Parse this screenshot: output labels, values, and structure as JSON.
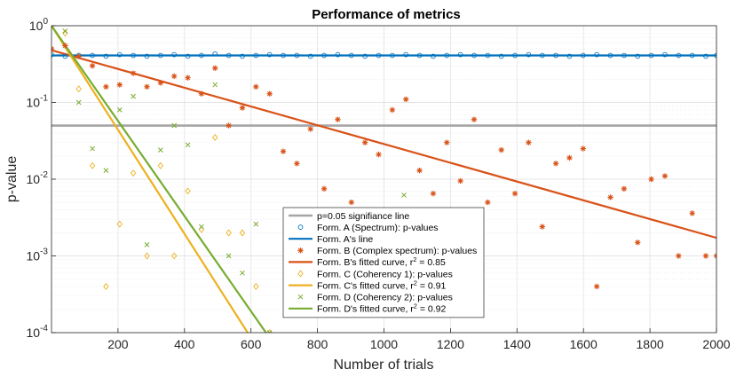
{
  "chart_data": {
    "type": "scatter",
    "title": "Performance of metrics",
    "xlabel": "Number of trials",
    "ylabel": "p-value",
    "xlim": [
      0,
      2000
    ],
    "ylim": [
      0.0001,
      1
    ],
    "yscale": "log",
    "grid": true,
    "legend_position": "bottom-center",
    "xticks": [
      200,
      400,
      600,
      800,
      1000,
      1200,
      1400,
      1600,
      1800,
      2000
    ],
    "xtick_labels": [
      "200",
      "400",
      "600",
      "800",
      "1000",
      "1200",
      "1400",
      "1600",
      "1800",
      "2000"
    ],
    "yticks": [
      1,
      0.1,
      0.01,
      0.001,
      0.0001
    ],
    "ytick_labels": [
      {
        "base": "10",
        "exp": "0"
      },
      {
        "base": "10",
        "exp": "-1"
      },
      {
        "base": "10",
        "exp": "-2"
      },
      {
        "base": "10",
        "exp": "-3"
      },
      {
        "base": "10",
        "exp": "-4"
      }
    ],
    "series": [
      {
        "name": "p=0.05 signifiance line",
        "legend_label": "p=0.05 signifiance line",
        "kind": "line",
        "color": "#a6a6a6",
        "x": [
          0,
          2000
        ],
        "y": [
          0.05,
          0.05
        ]
      },
      {
        "name": "Form. A (Spectrum): p-values",
        "legend_label": "Form. A (Spectrum): p-values",
        "kind": "marker",
        "marker": "circle",
        "color": "#0072bd",
        "x": [
          0,
          41,
          82,
          123,
          164,
          205,
          246,
          287,
          328,
          369,
          410,
          451,
          492,
          533,
          574,
          615,
          656,
          697,
          738,
          779,
          820,
          861,
          902,
          943,
          984,
          1025,
          1066,
          1107,
          1148,
          1189,
          1230,
          1271,
          1312,
          1353,
          1394,
          1435,
          1476,
          1517,
          1558,
          1599,
          1640,
          1681,
          1722,
          1763,
          1804,
          1845,
          1886,
          1927,
          1968,
          2000
        ],
        "y": [
          0.42,
          0.4,
          0.41,
          0.41,
          0.4,
          0.42,
          0.41,
          0.4,
          0.41,
          0.42,
          0.4,
          0.41,
          0.43,
          0.41,
          0.4,
          0.41,
          0.42,
          0.41,
          0.41,
          0.4,
          0.41,
          0.42,
          0.41,
          0.4,
          0.41,
          0.41,
          0.42,
          0.41,
          0.4,
          0.41,
          0.42,
          0.41,
          0.41,
          0.4,
          0.41,
          0.42,
          0.41,
          0.41,
          0.4,
          0.41,
          0.42,
          0.41,
          0.41,
          0.4,
          0.41,
          0.42,
          0.41,
          0.41,
          0.4,
          0.41
        ]
      },
      {
        "name": "Form. A's line",
        "legend_label": "Form. A's line",
        "kind": "line",
        "color": "#0072bd",
        "x": [
          0,
          2000
        ],
        "y": [
          0.41,
          0.41
        ]
      },
      {
        "name": "Form. B (Complex spectrum): p-values",
        "legend_label": "Form. B (Complex spectrum): p-values",
        "kind": "marker",
        "marker": "star",
        "color": "#d95319",
        "x": [
          0,
          41,
          82,
          123,
          164,
          205,
          246,
          287,
          328,
          369,
          410,
          451,
          492,
          533,
          574,
          615,
          656,
          697,
          738,
          779,
          820,
          861,
          902,
          943,
          984,
          1025,
          1066,
          1107,
          1148,
          1189,
          1230,
          1271,
          1312,
          1353,
          1394,
          1435,
          1476,
          1517,
          1558,
          1599,
          1640,
          1681,
          1722,
          1763,
          1804,
          1845,
          1886,
          1927,
          1968,
          2000
        ],
        "y": [
          0.5,
          0.55,
          0.4,
          0.3,
          0.16,
          0.17,
          0.24,
          0.16,
          0.18,
          0.22,
          0.21,
          0.13,
          0.28,
          0.05,
          0.085,
          0.16,
          0.13,
          0.023,
          0.016,
          0.045,
          0.0075,
          0.06,
          0.005,
          0.03,
          0.021,
          0.08,
          0.11,
          0.013,
          0.0065,
          0.03,
          0.0095,
          0.06,
          0.005,
          0.024,
          0.0065,
          0.03,
          0.0024,
          0.016,
          0.019,
          0.025,
          0.0004,
          0.0058,
          0.0075,
          0.0015,
          0.01,
          0.011,
          0.001,
          0.0036,
          0.001,
          0.001
        ]
      },
      {
        "name": "Form. B's fitted curve",
        "legend_label": "Form. B's fitted curve, r",
        "legend_sup": "2",
        "legend_suffix": " = 0.85",
        "kind": "line",
        "color": "#d95319",
        "x": [
          0,
          2000
        ],
        "y": [
          0.48,
          0.00172
        ]
      },
      {
        "name": "Form. C (Coherency 1): p-values",
        "legend_label": "Form. C (Coherency 1): p-values",
        "kind": "marker",
        "marker": "diamond",
        "color": "#edb120",
        "x": [
          41,
          82,
          123,
          164,
          205,
          246,
          287,
          328,
          369,
          410,
          451,
          492,
          533,
          574,
          615,
          656
        ],
        "y": [
          0.8,
          0.15,
          0.015,
          0.0004,
          0.0026,
          0.012,
          0.001,
          0.015,
          0.001,
          0.007,
          0.0022,
          0.035,
          0.002,
          0.002,
          0.0004,
          0.0001
        ]
      },
      {
        "name": "Form. C's fitted curve",
        "legend_label": "Form. C's fitted curve, r",
        "legend_sup": "2",
        "legend_suffix": " = 0.91",
        "kind": "line",
        "color": "#edb120",
        "x": [
          0,
          590
        ],
        "y": [
          1,
          0.0001
        ]
      },
      {
        "name": "Form. D (Coherency 2): p-values",
        "legend_label": "Form. D (Coherency 2): p-values",
        "kind": "marker",
        "marker": "x",
        "color": "#77ac30",
        "x": [
          41,
          82,
          123,
          164,
          205,
          246,
          287,
          328,
          369,
          410,
          451,
          492,
          533,
          574,
          615,
          656,
          1060
        ],
        "y": [
          0.85,
          0.1,
          0.025,
          0.013,
          0.08,
          0.12,
          0.0014,
          0.024,
          0.05,
          0.028,
          0.0024,
          0.17,
          0.001,
          0.0006,
          0.0026,
          0.0001,
          0.0062
        ]
      },
      {
        "name": "Form. D's fitted curve",
        "legend_label": "Form. D's fitted curve, r",
        "legend_sup": "2",
        "legend_suffix": " = 0.92",
        "kind": "line",
        "color": "#77ac30",
        "x": [
          0,
          645
        ],
        "y": [
          1,
          0.0001
        ]
      }
    ]
  }
}
